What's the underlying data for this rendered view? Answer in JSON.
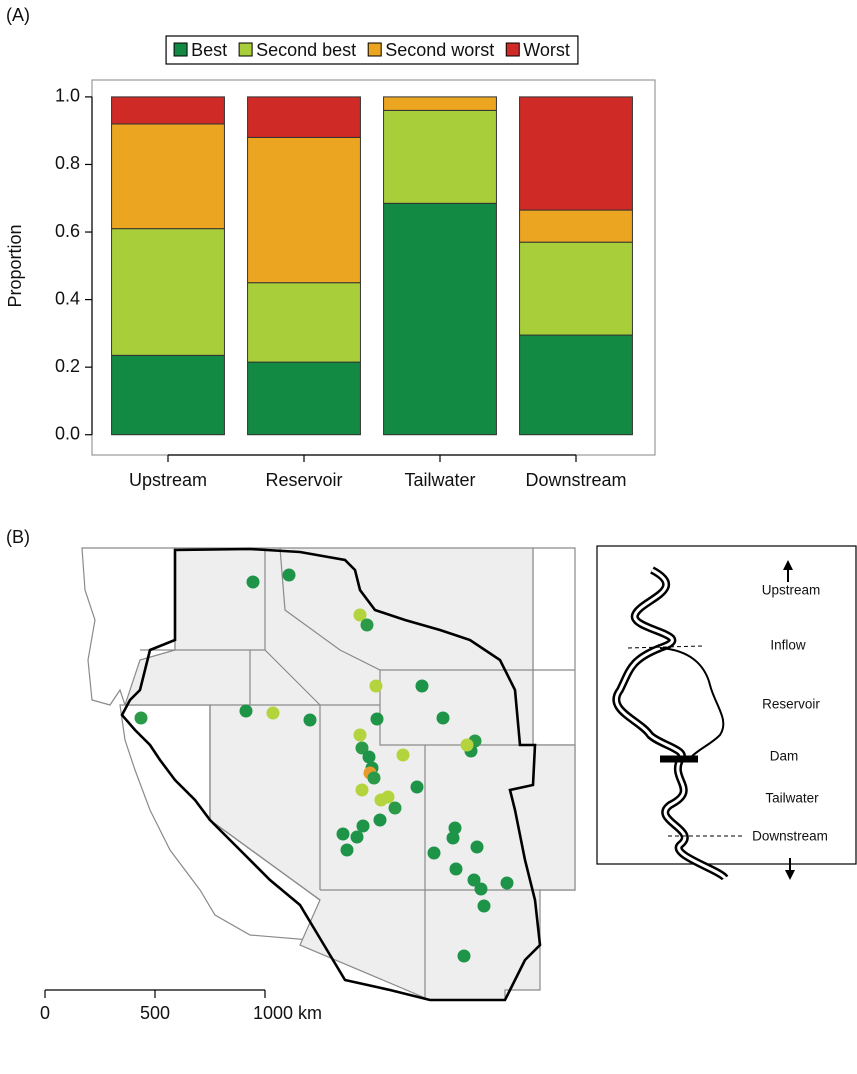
{
  "chart_data": [
    {
      "type": "bar",
      "stacked": true,
      "panel_label": "(A)",
      "categories": [
        "Upstream",
        "Reservoir",
        "Tailwater",
        "Downstream"
      ],
      "series": [
        {
          "name": "Best",
          "color": "#138a43",
          "values": [
            0.235,
            0.215,
            0.685,
            0.295
          ]
        },
        {
          "name": "Second best",
          "color": "#a8cf3a",
          "values": [
            0.375,
            0.235,
            0.275,
            0.275
          ]
        },
        {
          "name": "Second worst",
          "color": "#eba520",
          "values": [
            0.31,
            0.43,
            0.04,
            0.095
          ]
        },
        {
          "name": "Worst",
          "color": "#d02a27",
          "values": [
            0.08,
            0.12,
            0,
            0.335
          ]
        }
      ],
      "ylabel": "Proportion",
      "ylim": [
        -0.06,
        1.05
      ],
      "yticks": [
        {
          "value": 0,
          "label": "0.0"
        },
        0.2,
        0.4,
        0.6,
        0.8,
        {
          "value": 1,
          "label": "1.0"
        }
      ],
      "legend": "top"
    },
    {
      "type": "map",
      "panel_label": "(B)",
      "scale_bar": {
        "xlim": [
          0,
          1000
        ],
        "xticks": [
          0,
          500,
          {
            "value": 1000,
            "label": "1000 km"
          }
        ]
      },
      "diagram_labels": [
        "Upstream",
        "Inflow",
        "Reservoir",
        "Dam",
        "Tailwater",
        "Downstream"
      ]
    }
  ]
}
